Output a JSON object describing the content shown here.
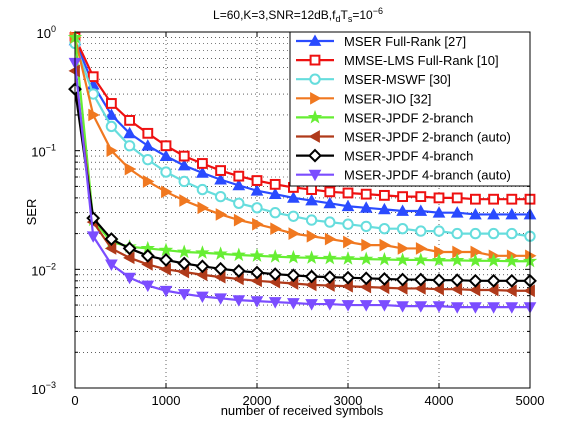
{
  "chart_data": {
    "type": "line",
    "title_parts": {
      "main": "L=60,K=3,SNR=12dB,f",
      "sub1": "d",
      "mid": "T",
      "sub2": "s",
      "eq": "=10",
      "sup": "−6"
    },
    "xlabel": "number of received symbols",
    "ylabel": "SER",
    "x_scale": "linear",
    "y_scale": "log",
    "xlim": [
      0,
      5000
    ],
    "ylim": [
      0.001,
      1
    ],
    "x_ticks": [
      "0",
      "1000",
      "2000",
      "3000",
      "4000",
      "5000"
    ],
    "y_ticks": [
      {
        "base": "10",
        "exp": "0"
      },
      {
        "base": "10",
        "exp": "−1"
      },
      {
        "base": "10",
        "exp": "−2"
      },
      {
        "base": "10",
        "exp": "−3"
      }
    ],
    "grid": "dotted",
    "legend_position": "top-right",
    "x": [
      0,
      200,
      400,
      600,
      800,
      1000,
      1200,
      1400,
      1600,
      1800,
      2000,
      2200,
      2400,
      2600,
      2800,
      3000,
      3200,
      3400,
      3600,
      3800,
      4000,
      4200,
      4400,
      4600,
      4800,
      5000
    ],
    "series": [
      {
        "name": "MSER Full-Rank [27]",
        "color": "#2a4bff",
        "marker": "triangle-up",
        "values": [
          0.85,
          0.36,
          0.2,
          0.14,
          0.11,
          0.09,
          0.075,
          0.065,
          0.057,
          0.051,
          0.046,
          0.043,
          0.04,
          0.038,
          0.036,
          0.034,
          0.033,
          0.032,
          0.031,
          0.031,
          0.03,
          0.03,
          0.029,
          0.029,
          0.029,
          0.029
        ]
      },
      {
        "name": "MMSE-LMS Full-Rank [10]",
        "color": "#ee1111",
        "marker": "square",
        "values": [
          0.9,
          0.42,
          0.25,
          0.18,
          0.14,
          0.11,
          0.09,
          0.078,
          0.068,
          0.061,
          0.056,
          0.052,
          0.049,
          0.047,
          0.045,
          0.044,
          0.043,
          0.042,
          0.041,
          0.041,
          0.04,
          0.04,
          0.039,
          0.039,
          0.039,
          0.039
        ]
      },
      {
        "name": "MSER-MSWF [30]",
        "color": "#66dddd",
        "marker": "circle",
        "values": [
          0.8,
          0.3,
          0.16,
          0.11,
          0.084,
          0.066,
          0.055,
          0.047,
          0.041,
          0.036,
          0.033,
          0.03,
          0.028,
          0.026,
          0.025,
          0.024,
          0.023,
          0.022,
          0.022,
          0.021,
          0.021,
          0.02,
          0.02,
          0.02,
          0.02,
          0.019
        ]
      },
      {
        "name": "MSER-JIO [32]",
        "color": "#f07820",
        "marker": "triangle-right",
        "values": [
          0.9,
          0.2,
          0.1,
          0.07,
          0.055,
          0.045,
          0.038,
          0.033,
          0.029,
          0.026,
          0.024,
          0.022,
          0.02,
          0.019,
          0.018,
          0.017,
          0.016,
          0.016,
          0.015,
          0.015,
          0.014,
          0.014,
          0.014,
          0.013,
          0.013,
          0.013
        ]
      },
      {
        "name": "MSER-JPDF 2-branch",
        "color": "#66ee33",
        "marker": "star",
        "values": [
          0.9,
          0.026,
          0.017,
          0.0155,
          0.015,
          0.0145,
          0.014,
          0.0138,
          0.0135,
          0.0132,
          0.013,
          0.0128,
          0.0126,
          0.0125,
          0.0124,
          0.0123,
          0.0122,
          0.0121,
          0.012,
          0.012,
          0.0119,
          0.0119,
          0.0118,
          0.0118,
          0.0117,
          0.0117
        ]
      },
      {
        "name": "MSER-JPDF 2-branch (auto)",
        "color": "#b03a1a",
        "marker": "triangle-left",
        "values": [
          0.47,
          0.025,
          0.015,
          0.0125,
          0.011,
          0.01,
          0.0095,
          0.009,
          0.0086,
          0.0083,
          0.008,
          0.0078,
          0.0076,
          0.0074,
          0.0073,
          0.0072,
          0.0071,
          0.007,
          0.0069,
          0.0069,
          0.0068,
          0.0068,
          0.0067,
          0.0067,
          0.0066,
          0.0066
        ]
      },
      {
        "name": "MSER-JPDF 4-branch",
        "color": "#000000",
        "marker": "diamond",
        "values": [
          0.33,
          0.027,
          0.018,
          0.015,
          0.013,
          0.012,
          0.0112,
          0.0106,
          0.0101,
          0.0097,
          0.0094,
          0.0091,
          0.0089,
          0.0087,
          0.0086,
          0.0085,
          0.0084,
          0.0083,
          0.0082,
          0.0082,
          0.0081,
          0.0081,
          0.008,
          0.008,
          0.008,
          0.008
        ]
      },
      {
        "name": "MSER-JPDF 4-branch (auto)",
        "color": "#7b4dff",
        "marker": "triangle-down",
        "values": [
          0.55,
          0.019,
          0.011,
          0.0085,
          0.0073,
          0.0066,
          0.0062,
          0.0059,
          0.0057,
          0.0055,
          0.0054,
          0.0053,
          0.0052,
          0.0051,
          0.0051,
          0.005,
          0.005,
          0.005,
          0.0049,
          0.0049,
          0.0049,
          0.0048,
          0.0048,
          0.0048,
          0.0048,
          0.0048
        ]
      }
    ]
  }
}
